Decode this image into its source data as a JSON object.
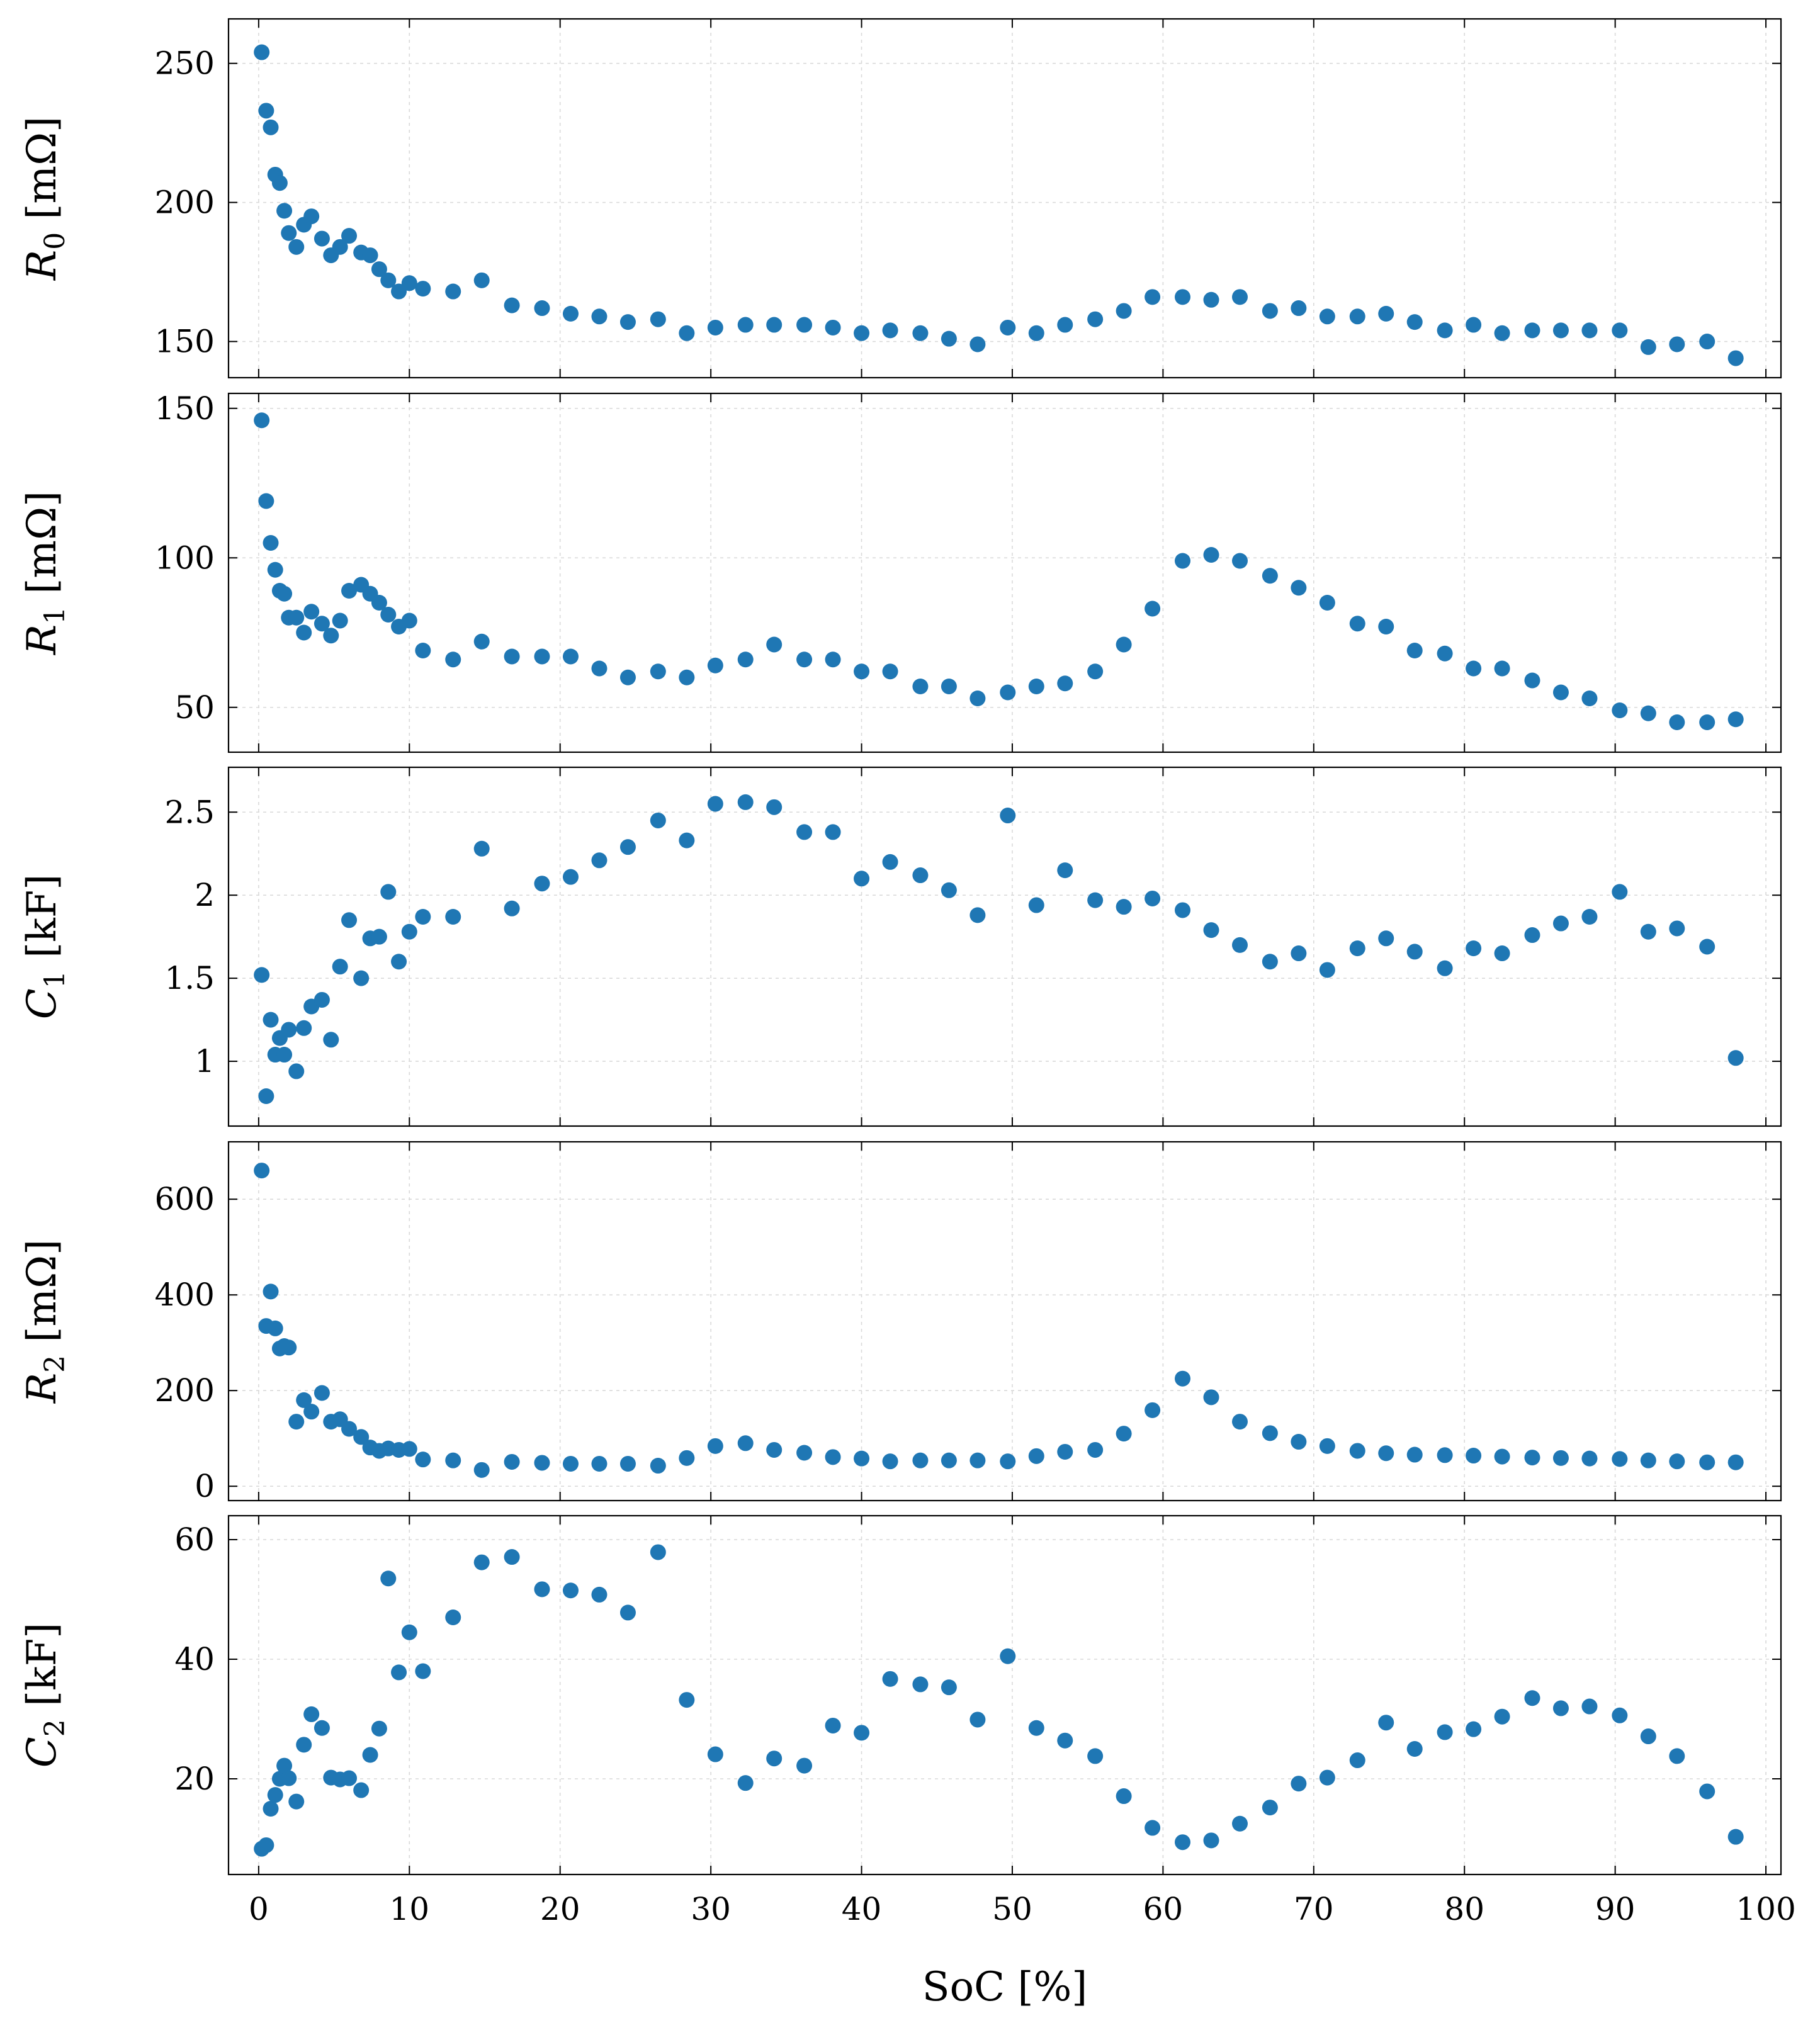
{
  "xaxis": {
    "label": "SoC [%]",
    "range": [
      -2,
      101
    ],
    "ticks": [
      0,
      10,
      20,
      30,
      40,
      50,
      60,
      70,
      80,
      90,
      100
    ],
    "tick_labels": [
      "0",
      "10",
      "20",
      "30",
      "40",
      "50",
      "60",
      "70",
      "80",
      "90",
      "100"
    ]
  },
  "colors": {
    "marker": "#1f77b4",
    "grid": "#d9d9d9",
    "frame": "#000000"
  },
  "chart_data": [
    {
      "type": "scatter",
      "ylabel": {
        "symbol": "R",
        "sub": "0",
        "unit": " [mΩ]"
      },
      "ylim": [
        137,
        266
      ],
      "yticks": [
        150,
        200,
        250
      ],
      "ytick_labels": [
        "150",
        "200",
        "250"
      ],
      "x": [
        0.2,
        0.5,
        0.8,
        1.1,
        1.4,
        1.7,
        2.0,
        2.5,
        3.0,
        3.5,
        4.2,
        4.8,
        5.4,
        6.0,
        6.8,
        7.4,
        8.0,
        8.6,
        9.3,
        10.0,
        10.9,
        12.9,
        14.8,
        16.8,
        18.8,
        20.7,
        22.6,
        24.5,
        26.5,
        28.4,
        30.3,
        32.3,
        34.2,
        36.2,
        38.1,
        40.0,
        41.9,
        43.9,
        45.8,
        47.7,
        49.7,
        51.6,
        53.5,
        55.5,
        57.4,
        59.3,
        61.3,
        63.2,
        65.1,
        67.1,
        69.0,
        70.9,
        72.9,
        74.8,
        76.7,
        78.7,
        80.6,
        82.5,
        84.5,
        86.4,
        88.3,
        90.3,
        92.2,
        94.1,
        96.1,
        98.0
      ],
      "y": [
        254,
        233,
        227,
        210,
        207,
        197,
        189,
        184,
        192,
        195,
        187,
        181,
        184,
        188,
        182,
        181,
        176,
        172,
        168,
        171,
        169,
        168,
        172,
        163,
        162,
        160,
        159,
        157,
        158,
        153,
        155,
        156,
        156,
        156,
        155,
        153,
        154,
        153,
        151,
        149,
        155,
        153,
        156,
        158,
        161,
        166,
        166,
        165,
        166,
        161,
        162,
        159,
        159,
        160,
        157,
        154,
        156,
        153,
        154,
        154,
        154,
        154,
        148,
        149,
        150,
        144
      ]
    },
    {
      "type": "scatter",
      "ylabel": {
        "symbol": "R",
        "sub": "1",
        "unit": " [mΩ]"
      },
      "ylim": [
        35,
        155
      ],
      "yticks": [
        50,
        100,
        150
      ],
      "ytick_labels": [
        "50",
        "100",
        "150"
      ],
      "x": [
        0.2,
        0.5,
        0.8,
        1.1,
        1.4,
        1.7,
        2.0,
        2.5,
        3.0,
        3.5,
        4.2,
        4.8,
        5.4,
        6.0,
        6.8,
        7.4,
        8.0,
        8.6,
        9.3,
        10.0,
        10.9,
        12.9,
        14.8,
        16.8,
        18.8,
        20.7,
        22.6,
        24.5,
        26.5,
        28.4,
        30.3,
        32.3,
        34.2,
        36.2,
        38.1,
        40.0,
        41.9,
        43.9,
        45.8,
        47.7,
        49.7,
        51.6,
        53.5,
        55.5,
        57.4,
        59.3,
        61.3,
        63.2,
        65.1,
        67.1,
        69.0,
        70.9,
        72.9,
        74.8,
        76.7,
        78.7,
        80.6,
        82.5,
        84.5,
        86.4,
        88.3,
        90.3,
        92.2,
        94.1,
        96.1,
        98.0
      ],
      "y": [
        146,
        119,
        105,
        96,
        89,
        88,
        80,
        80,
        75,
        82,
        78,
        74,
        79,
        89,
        91,
        88,
        85,
        81,
        77,
        79,
        69,
        66,
        72,
        67,
        67,
        67,
        63,
        60,
        62,
        60,
        64,
        66,
        71,
        66,
        66,
        62,
        62,
        57,
        57,
        53,
        55,
        57,
        58,
        62,
        71,
        83,
        99,
        101,
        99,
        94,
        90,
        85,
        78,
        77,
        69,
        68,
        63,
        63,
        59,
        55,
        53,
        49,
        48,
        45,
        45,
        46
      ]
    },
    {
      "type": "scatter",
      "ylabel": {
        "symbol": "C",
        "sub": "1",
        "unit": " [kF]"
      },
      "ylim": [
        0.61,
        2.77
      ],
      "yticks": [
        1,
        1.5,
        2,
        2.5
      ],
      "ytick_labels": [
        "1",
        "1.5",
        "2",
        "2.5"
      ],
      "x": [
        0.2,
        0.5,
        0.8,
        1.1,
        1.4,
        1.7,
        2.0,
        2.5,
        3.0,
        3.5,
        4.2,
        4.8,
        5.4,
        6.0,
        6.8,
        7.4,
        8.0,
        8.6,
        9.3,
        10.0,
        10.9,
        12.9,
        14.8,
        16.8,
        18.8,
        20.7,
        22.6,
        24.5,
        26.5,
        28.4,
        30.3,
        32.3,
        34.2,
        36.2,
        38.1,
        40.0,
        41.9,
        43.9,
        45.8,
        47.7,
        49.7,
        51.6,
        53.5,
        55.5,
        57.4,
        59.3,
        61.3,
        63.2,
        65.1,
        67.1,
        69.0,
        70.9,
        72.9,
        74.8,
        76.7,
        78.7,
        80.6,
        82.5,
        84.5,
        86.4,
        88.3,
        90.3,
        92.2,
        94.1,
        96.1,
        98.0
      ],
      "y": [
        1.52,
        0.79,
        1.25,
        1.04,
        1.14,
        1.04,
        1.19,
        0.94,
        1.2,
        1.33,
        1.37,
        1.13,
        1.57,
        1.85,
        1.5,
        1.74,
        1.75,
        2.02,
        1.6,
        1.78,
        1.87,
        1.87,
        2.28,
        1.92,
        2.07,
        2.11,
        2.21,
        2.29,
        2.45,
        2.33,
        2.55,
        2.56,
        2.53,
        2.38,
        2.38,
        2.1,
        2.2,
        2.12,
        2.03,
        1.88,
        2.48,
        1.94,
        2.15,
        1.97,
        1.93,
        1.98,
        1.91,
        1.79,
        1.7,
        1.6,
        1.65,
        1.55,
        1.68,
        1.74,
        1.66,
        1.56,
        1.68,
        1.65,
        1.76,
        1.83,
        1.87,
        2.02,
        1.78,
        1.8,
        1.69,
        1.02
      ]
    },
    {
      "type": "scatter",
      "ylabel": {
        "symbol": "R",
        "sub": "2",
        "unit": " [mΩ]"
      },
      "ylim": [
        -30,
        720
      ],
      "yticks": [
        0,
        200,
        400,
        600
      ],
      "ytick_labels": [
        "0",
        "200",
        "400",
        "600"
      ],
      "x": [
        0.2,
        0.5,
        0.8,
        1.1,
        1.4,
        1.7,
        2.0,
        2.5,
        3.0,
        3.5,
        4.2,
        4.8,
        5.4,
        6.0,
        6.8,
        7.4,
        8.0,
        8.6,
        9.3,
        10.0,
        10.9,
        12.9,
        14.8,
        16.8,
        18.8,
        20.7,
        22.6,
        24.5,
        26.5,
        28.4,
        30.3,
        32.3,
        34.2,
        36.2,
        38.1,
        40.0,
        41.9,
        43.9,
        45.8,
        47.7,
        49.7,
        51.6,
        53.5,
        55.5,
        57.4,
        59.3,
        61.3,
        63.2,
        65.1,
        67.1,
        69.0,
        70.9,
        72.9,
        74.8,
        76.7,
        78.7,
        80.6,
        82.5,
        84.5,
        86.4,
        88.3,
        90.3,
        92.2,
        94.1,
        96.1,
        98.0
      ],
      "y": [
        660,
        335,
        407,
        330,
        288,
        293,
        290,
        135,
        180,
        156,
        195,
        135,
        140,
        120,
        103,
        81,
        74,
        79,
        76,
        78,
        56,
        54,
        34,
        51,
        49,
        47,
        47,
        47,
        43,
        59,
        84,
        90,
        76,
        70,
        61,
        58,
        52,
        54,
        54,
        54,
        52,
        63,
        72,
        76,
        110,
        159,
        225,
        186,
        135,
        111,
        93,
        84,
        74,
        69,
        66,
        65,
        64,
        62,
        60,
        59,
        58,
        57,
        54,
        52,
        50,
        50
      ]
    },
    {
      "type": "scatter",
      "ylabel": {
        "symbol": "C",
        "sub": "2",
        "unit": " [kF]"
      },
      "ylim": [
        4,
        64
      ],
      "yticks": [
        20,
        40,
        60
      ],
      "ytick_labels": [
        "20",
        "40",
        "60"
      ],
      "x": [
        0.2,
        0.5,
        0.8,
        1.1,
        1.4,
        1.7,
        2.0,
        2.5,
        3.0,
        3.5,
        4.2,
        4.8,
        5.4,
        6.0,
        6.8,
        7.4,
        8.0,
        8.6,
        9.3,
        10.0,
        10.9,
        12.9,
        14.8,
        16.8,
        18.8,
        20.7,
        22.6,
        24.5,
        26.5,
        28.4,
        30.3,
        32.3,
        34.2,
        36.2,
        38.1,
        40.0,
        41.9,
        43.9,
        45.8,
        47.7,
        49.7,
        51.6,
        53.5,
        55.5,
        57.4,
        59.3,
        61.3,
        63.2,
        65.1,
        67.1,
        69.0,
        70.9,
        72.9,
        74.8,
        76.7,
        78.7,
        80.6,
        82.5,
        84.5,
        86.4,
        88.3,
        90.3,
        92.2,
        94.1,
        96.1,
        98.0
      ],
      "y": [
        8.3,
        8.9,
        15,
        17.3,
        20,
        22.2,
        20.1,
        16.2,
        25.7,
        30.8,
        28.5,
        20.2,
        19.9,
        20.1,
        18.1,
        24,
        28.4,
        53.5,
        37.8,
        44.5,
        38,
        47,
        56.2,
        57.1,
        51.7,
        51.5,
        50.8,
        47.8,
        57.9,
        33.2,
        24.1,
        19.3,
        23.4,
        22.2,
        28.9,
        27.7,
        36.7,
        35.8,
        35.3,
        29.9,
        40.5,
        28.5,
        26.4,
        23.8,
        17.1,
        11.8,
        9.4,
        9.7,
        12.5,
        15.2,
        19.2,
        20.2,
        23.1,
        29.4,
        25,
        27.8,
        28.3,
        30.4,
        33.5,
        31.8,
        32.1,
        30.6,
        27.1,
        23.8,
        17.9,
        10.3
      ]
    }
  ]
}
